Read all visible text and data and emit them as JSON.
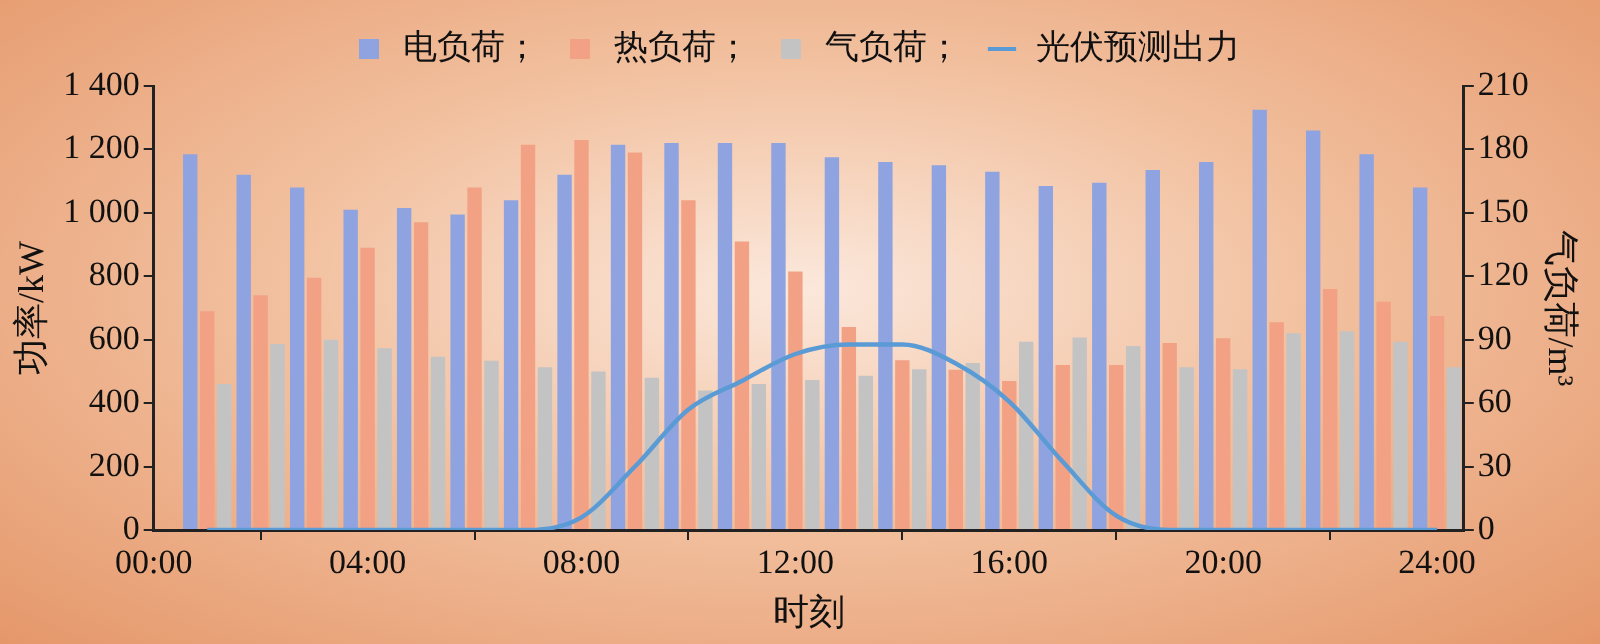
{
  "chart_data": {
    "type": "bar",
    "xlabel": "时刻",
    "ylabel": "功率/kW",
    "y2label": "气负荷/m³",
    "x": [
      1,
      2,
      3,
      4,
      5,
      6,
      7,
      8,
      9,
      10,
      11,
      12,
      13,
      14,
      15,
      16,
      17,
      18,
      19,
      20,
      21,
      22,
      23,
      24
    ],
    "xlim": [
      0,
      24.5
    ],
    "xticks": [
      {
        "value": 0,
        "label": "00:00"
      },
      {
        "value": 4,
        "label": "04:00"
      },
      {
        "value": 8,
        "label": "08:00"
      },
      {
        "value": 12,
        "label": "12:00"
      },
      {
        "value": 16,
        "label": "16:00"
      },
      {
        "value": 20,
        "label": "20:00"
      },
      {
        "value": 24,
        "label": "24:00"
      }
    ],
    "ylim": [
      0,
      1400
    ],
    "yticks": [
      0,
      200,
      400,
      600,
      800,
      {
        "value": 1000,
        "label": "1 000"
      },
      {
        "value": 1200,
        "label": "1 200"
      },
      {
        "value": 1400,
        "label": "1 400"
      }
    ],
    "y2lim": [
      0,
      210
    ],
    "y2ticks": [
      0,
      30,
      60,
      90,
      120,
      150,
      180,
      210
    ],
    "series": [
      {
        "name": "电负荷；",
        "color": "#8fa3e0",
        "values": [
          1185,
          1120,
          1080,
          1010,
          1015,
          995,
          1040,
          1120,
          1215,
          1220,
          1220,
          1220,
          1175,
          1160,
          1150,
          1130,
          1085,
          1095,
          1135,
          1160,
          1325,
          1260,
          1185,
          1080
        ]
      },
      {
        "name": "热负荷；",
        "color": "#f2a184",
        "values": [
          690,
          740,
          795,
          890,
          970,
          1080,
          1215,
          1230,
          1190,
          1040,
          910,
          815,
          640,
          535,
          505,
          470,
          520,
          520,
          590,
          605,
          655,
          760,
          720,
          675
        ]
      },
      {
        "name": "气负荷；",
        "axis": "y2",
        "color": "#c3c3c3",
        "values": [
          69,
          88,
          90,
          86,
          82,
          80,
          77,
          75,
          72,
          66,
          69,
          71,
          73,
          76,
          79,
          89,
          91,
          87,
          77,
          76,
          93,
          94,
          89,
          77
        ]
      },
      {
        "name": "光伏预测出力",
        "type": "line",
        "color": "#5b9bd5",
        "values": [
          0,
          0,
          0,
          0,
          0,
          0,
          0,
          40,
          200,
          380,
          470,
          555,
          585,
          585,
          525,
          405,
          215,
          45,
          0,
          0,
          0,
          0,
          0,
          0
        ]
      }
    ],
    "legend": "top",
    "grid": false,
    "marker": "none",
    "line_style": "solid"
  }
}
